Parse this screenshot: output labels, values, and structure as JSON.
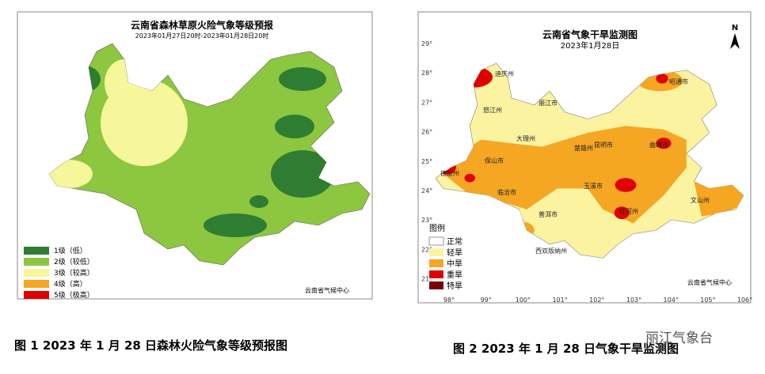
{
  "map1": {
    "title": "云南省森林草原火险气象等级预报",
    "subtitle": "2023年01月27日20时-2023年01月28日20时",
    "legend": [
      "1级（低）",
      "2级（较低）",
      "3级（较高）",
      "4级（高）",
      "5级（极高）"
    ],
    "source": "云南省气候中心",
    "caption": "图 1   2023 年 1 月 28 日森林火险气象等级预报图"
  },
  "map2": {
    "title": "云南省气象干旱监测图",
    "date": "2023年1月28日",
    "north": "N",
    "lat_labels": [
      "29°",
      "28°",
      "27°",
      "26°",
      "25°",
      "24°",
      "23°",
      "22°",
      "21°"
    ],
    "lon_labels": [
      "98°",
      "99°",
      "100°",
      "101°",
      "102°",
      "103°",
      "104°",
      "105°",
      "106°"
    ],
    "legend_title": "图例",
    "legend": [
      "正常",
      "轻旱",
      "中旱",
      "重旱",
      "特旱"
    ],
    "places": [
      "迪庆州",
      "昭通市",
      "丽江市",
      "怒江州",
      "大理州",
      "楚雄州",
      "昆明市",
      "曲靖市",
      "保山市",
      "德宏州",
      "临沧市",
      "玉溪市",
      "红河州",
      "文山州",
      "普洱市",
      "西双版纳州"
    ],
    "source": "云南省气候中心",
    "caption": "图 2   2023 年 1 月 28 日气象干旱监测图"
  },
  "watermark": "丽江气象台"
}
